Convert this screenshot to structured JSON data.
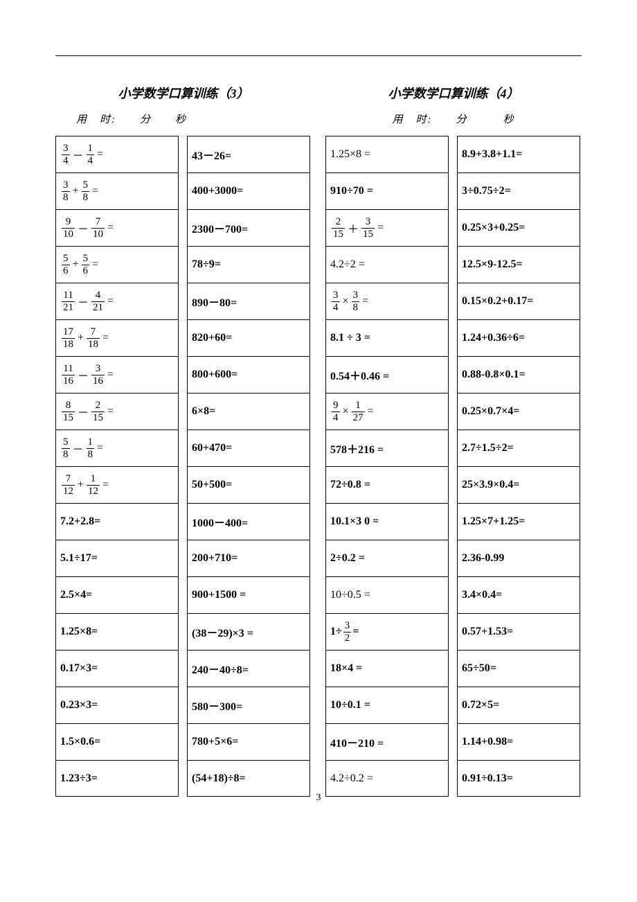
{
  "page_number": "3",
  "sheets": [
    {
      "title": "小学数学口算训练（3）",
      "subtitle": "用　时:　　分　　秒",
      "subtitle_class": "sub-left",
      "colA": [
        {
          "type": "frac",
          "parts": [
            [
              "3",
              "4"
            ],
            "－",
            [
              "1",
              "4"
            ],
            "="
          ]
        },
        {
          "type": "frac",
          "parts": [
            [
              "3",
              "8"
            ],
            "+",
            [
              "5",
              "8"
            ],
            "="
          ]
        },
        {
          "type": "frac",
          "parts": [
            [
              "9",
              "10"
            ],
            "－",
            [
              "7",
              "10"
            ],
            "="
          ]
        },
        {
          "type": "frac",
          "parts": [
            [
              "5",
              "6"
            ],
            "+",
            [
              "5",
              "6"
            ],
            "="
          ]
        },
        {
          "type": "frac",
          "parts": [
            [
              "11",
              "21"
            ],
            "－",
            [
              "4",
              "21"
            ],
            "="
          ]
        },
        {
          "type": "frac",
          "parts": [
            [
              "17",
              "18"
            ],
            "+",
            [
              "7",
              "18"
            ],
            "="
          ]
        },
        {
          "type": "frac",
          "parts": [
            [
              "11",
              "16"
            ],
            "－",
            [
              "3",
              "16"
            ],
            "="
          ]
        },
        {
          "type": "frac",
          "parts": [
            [
              "8",
              "15"
            ],
            "－",
            [
              "2",
              "15"
            ],
            "="
          ]
        },
        {
          "type": "frac",
          "parts": [
            [
              "5",
              "8"
            ],
            "－",
            [
              "1",
              "8"
            ],
            "="
          ]
        },
        {
          "type": "frac",
          "parts": [
            [
              "7",
              "12"
            ],
            "+",
            [
              "1",
              "12"
            ],
            "="
          ]
        },
        {
          "type": "text",
          "value": "7.2+2.8="
        },
        {
          "type": "text",
          "value": "5.1÷17="
        },
        {
          "type": "text",
          "value": "2.5×4="
        },
        {
          "type": "text",
          "value": "1.25×8="
        },
        {
          "type": "text",
          "value": "0.17×3="
        },
        {
          "type": "text",
          "value": "0.23×3="
        },
        {
          "type": "text",
          "value": "1.5×0.6="
        },
        {
          "type": "text",
          "value": "1.23÷3="
        }
      ],
      "colB": [
        {
          "type": "text",
          "value": "43－26="
        },
        {
          "type": "text",
          "value": "400+3000="
        },
        {
          "type": "text",
          "value": "2300－700="
        },
        {
          "type": "text",
          "value": "78÷9="
        },
        {
          "type": "text",
          "value": "890－80="
        },
        {
          "type": "text",
          "value": "820+60="
        },
        {
          "type": "text",
          "value": "800+600="
        },
        {
          "type": "text",
          "value": "6×8="
        },
        {
          "type": "text",
          "value": "60+470="
        },
        {
          "type": "text",
          "value": "50+500="
        },
        {
          "type": "text",
          "value": "1000－400="
        },
        {
          "type": "text",
          "value": "200+710="
        },
        {
          "type": "text",
          "value": "900+1500 ="
        },
        {
          "type": "text",
          "value": "(38－29)×3 ="
        },
        {
          "type": "text",
          "value": "240－40÷8="
        },
        {
          "type": "text",
          "value": "580－300="
        },
        {
          "type": "text",
          "value": "780+5×6="
        },
        {
          "type": "text",
          "value": "(54+18)÷8="
        }
      ]
    },
    {
      "title": "小学数学口算训练（4）",
      "subtitle": "用　时:　　分　　　秒",
      "subtitle_class": "sub-right",
      "colA": [
        {
          "type": "normal",
          "value": "1.25×8 ="
        },
        {
          "type": "text",
          "value": "910÷70 ="
        },
        {
          "type": "frac",
          "parts": [
            [
              "2",
              "15"
            ],
            "＋",
            [
              "3",
              "15"
            ],
            " ="
          ]
        },
        {
          "type": "normal",
          "value": "4.2÷2 ="
        },
        {
          "type": "frac",
          "parts": [
            [
              "3",
              "4"
            ],
            "×",
            [
              "3",
              "8"
            ],
            "="
          ]
        },
        {
          "type": "text",
          "value": "8.1 ÷ 3   ="
        },
        {
          "type": "text",
          "value": "0.54＋0.46 ="
        },
        {
          "type": "frac",
          "parts": [
            [
              "9",
              "4"
            ],
            "×",
            [
              "1",
              "27"
            ],
            "="
          ]
        },
        {
          "type": "text",
          "value": "578＋216 ="
        },
        {
          "type": "text",
          "value": "72÷0.8 ="
        },
        {
          "type": "text",
          "value": "10.1×3 0 ="
        },
        {
          "type": "text",
          "value": "2÷0.2 ="
        },
        {
          "type": "normal",
          "value": "10÷0.5 ="
        },
        {
          "type": "mixedfrac",
          "pre": "1÷",
          "frac": [
            "3",
            "2"
          ],
          "post": " ="
        },
        {
          "type": "text",
          "value": "18×4 ="
        },
        {
          "type": "text",
          "value": "10÷0.1 ="
        },
        {
          "type": "text",
          "value": "410－210 ="
        },
        {
          "type": "normal",
          "value": "4.2÷0.2 ="
        }
      ],
      "colB": [
        {
          "type": "text",
          "value": "8.9+3.8+1.1="
        },
        {
          "type": "mixed",
          "value": "3÷0.75÷2="
        },
        {
          "type": "mixed",
          "value": "0.25×3+0.25="
        },
        {
          "type": "mixed",
          "value": "12.5×9-12.5="
        },
        {
          "type": "mixed",
          "value": "0.15×0.2+0.17="
        },
        {
          "type": "text",
          "value": "1.24+0.36÷6="
        },
        {
          "type": "mixed",
          "value": "0.88-0.8×0.1="
        },
        {
          "type": "mixed",
          "value": "0.25×0.7×4="
        },
        {
          "type": "mixed",
          "value": "2.7÷1.5÷2="
        },
        {
          "type": "mixed",
          "value": "25×3.9×0.4="
        },
        {
          "type": "mixed",
          "value": "1.25×7+1.25="
        },
        {
          "type": "text",
          "value": "2.36-0.99"
        },
        {
          "type": "mixed",
          "value": "3.4×0.4="
        },
        {
          "type": "text",
          "value": "0.57+1.53="
        },
        {
          "type": "text",
          "value": "65÷50="
        },
        {
          "type": "text",
          "value": "0.72×5="
        },
        {
          "type": "text",
          "value": "1.14+0.98="
        },
        {
          "type": "mixed",
          "value": "0.91÷0.13="
        }
      ]
    }
  ]
}
